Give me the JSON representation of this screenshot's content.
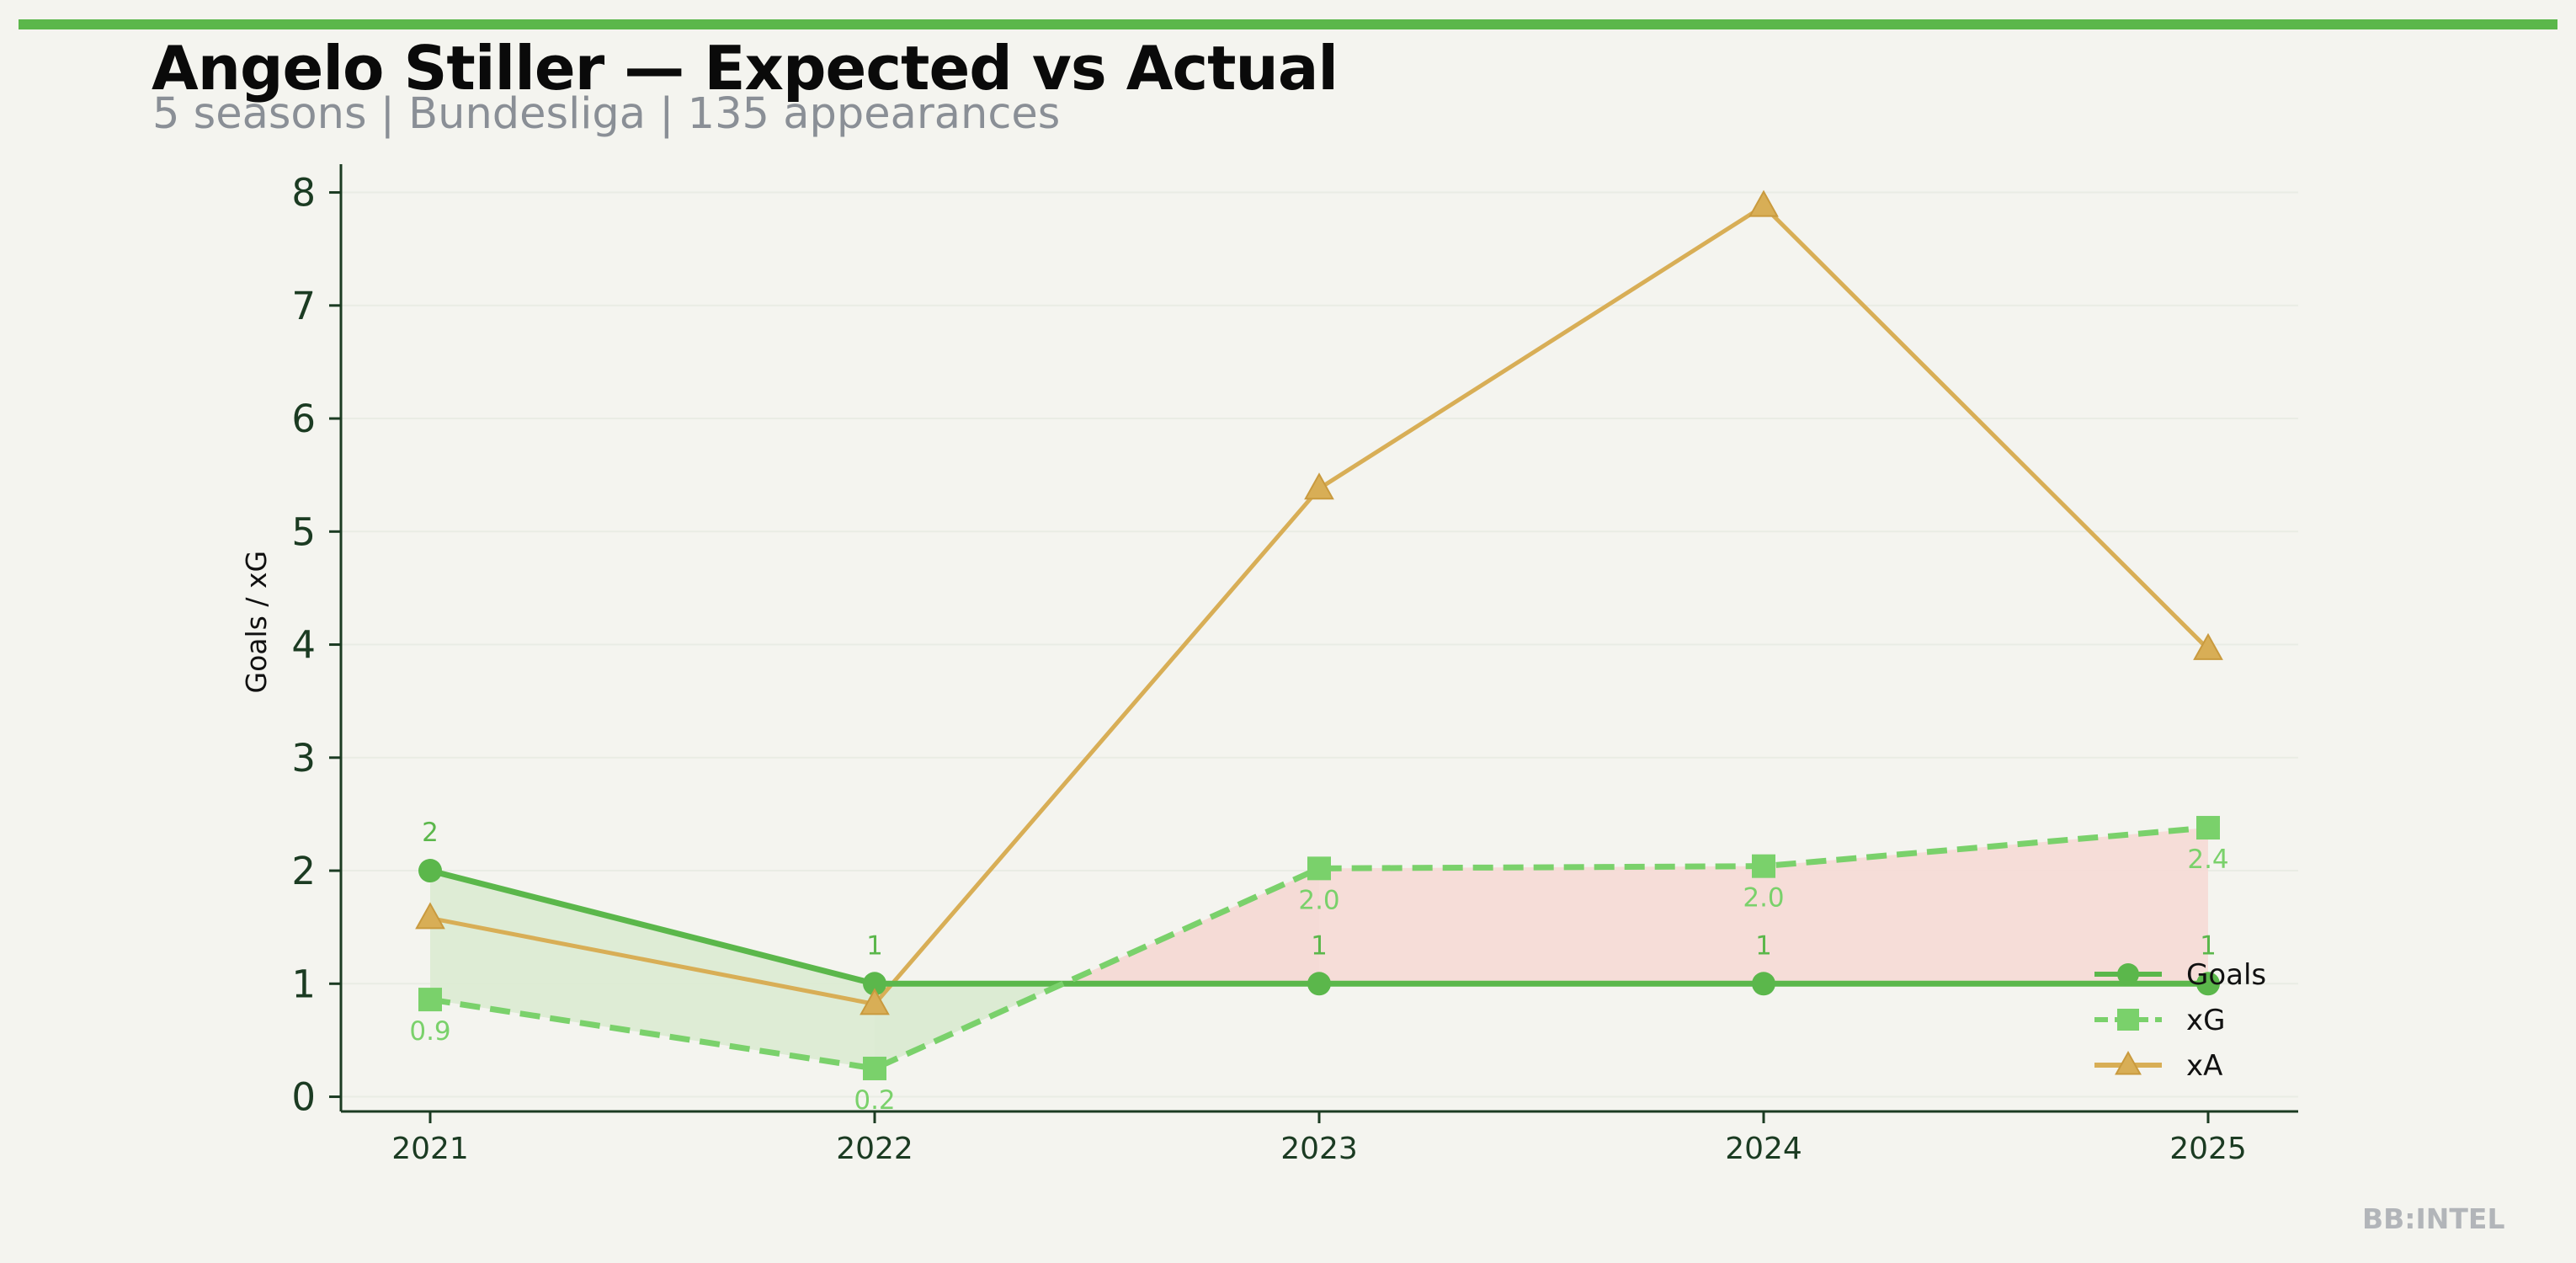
{
  "header": {
    "title": "Angelo Stiller — Expected vs Actual",
    "subtitle": "5 seasons | Bundesliga | 135 appearances"
  },
  "brand": "BB:INTEL",
  "colors": {
    "background": "#f4f4ef",
    "accent_bar": "#5bb74b",
    "goals": "#5bb74b",
    "xg": "#7ad16b",
    "xa": "#d8ae56",
    "overperform_fill": "#dcebd3",
    "underperform_fill": "#f5dbd6",
    "axis": "#1b3b22"
  },
  "chart_data": {
    "type": "line",
    "x": [
      "2021",
      "2022",
      "2023",
      "2024",
      "2025"
    ],
    "ylabel": "Goals / xG",
    "xlabel": "",
    "ylim": [
      -0.13,
      8.25
    ],
    "yticks": [
      "0",
      "1",
      "2",
      "3",
      "4",
      "5",
      "6",
      "7",
      "8"
    ],
    "grid": "horizontal, faint",
    "legend_position": "lower-right",
    "series": [
      {
        "name": "Goals",
        "values": [
          2,
          1,
          1,
          1,
          1
        ],
        "labels": [
          "2",
          "1",
          "1",
          "1",
          "1"
        ],
        "style": "solid line, circle markers"
      },
      {
        "name": "xG",
        "values": [
          0.86,
          0.25,
          2.02,
          2.04,
          2.38
        ],
        "labels": [
          "0.9",
          "0.2",
          "2.0",
          "2.0",
          "2.4"
        ],
        "style": "dashed line, square markers"
      },
      {
        "name": "xA",
        "values": [
          1.58,
          0.82,
          5.38,
          7.88,
          3.96
        ],
        "style": "solid line, triangle markers"
      }
    ],
    "shading": "green where Goals exceed xG, red where xG exceeds Goals"
  }
}
